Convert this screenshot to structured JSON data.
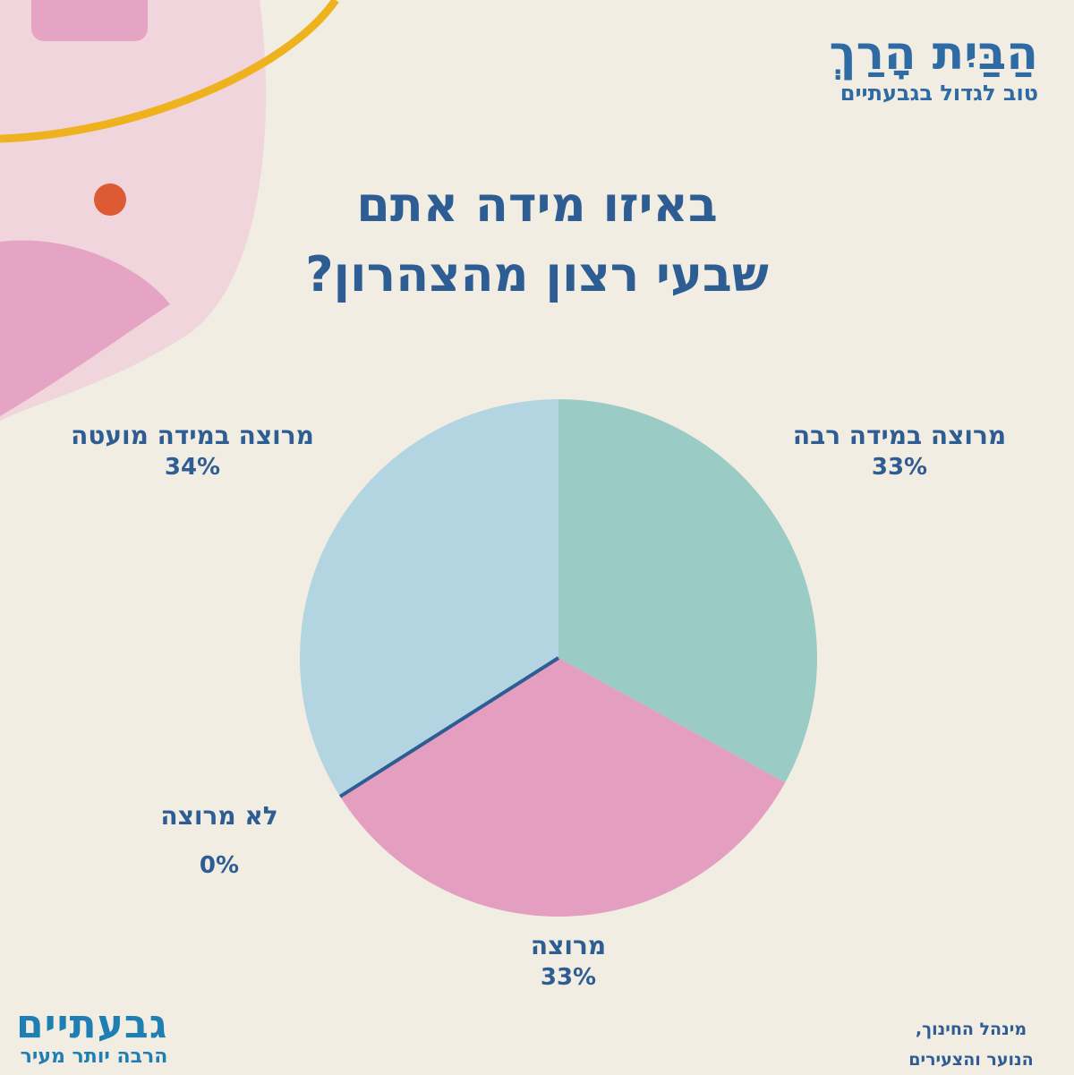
{
  "branding": {
    "top_logo_title": "הַבַּיִת הָרַךְ",
    "top_logo_subtitle": "טוב לגדול בגבעתיים",
    "bottom_logo_title": "גבעתיים",
    "bottom_logo_subtitle": "הרבה יותר מעיר",
    "department_line1": "מינהל החינוך,",
    "department_line2": "הנוער והצעירים"
  },
  "colors": {
    "background": "#f2ede3",
    "text": "#2e5d93",
    "teal": "#9acbc4",
    "pink": "#e49ec0",
    "light_blue": "#b3d5e1"
  },
  "chart_data": {
    "type": "pie",
    "title": "באיזו מידה אתם שבעי רצון מהצהרון?",
    "title_line1": "באיזו מידה אתם",
    "title_line2": "שבעי רצון מהצהרון?",
    "slices": [
      {
        "label": "מרוצה במידה רבה",
        "value": 33,
        "display": "33%",
        "color": "#9acbc4"
      },
      {
        "label": "מרוצה",
        "value": 33,
        "display": "33%",
        "color": "#e49ec0"
      },
      {
        "label": "לא מרוצה",
        "value": 0,
        "display": "0%",
        "color": "#2e5d93"
      },
      {
        "label": "מרוצה במידה מועטה",
        "value": 34,
        "display": "34%",
        "color": "#b3d5e1"
      }
    ],
    "start": "top",
    "direction": "clockwise",
    "legend": "none"
  }
}
